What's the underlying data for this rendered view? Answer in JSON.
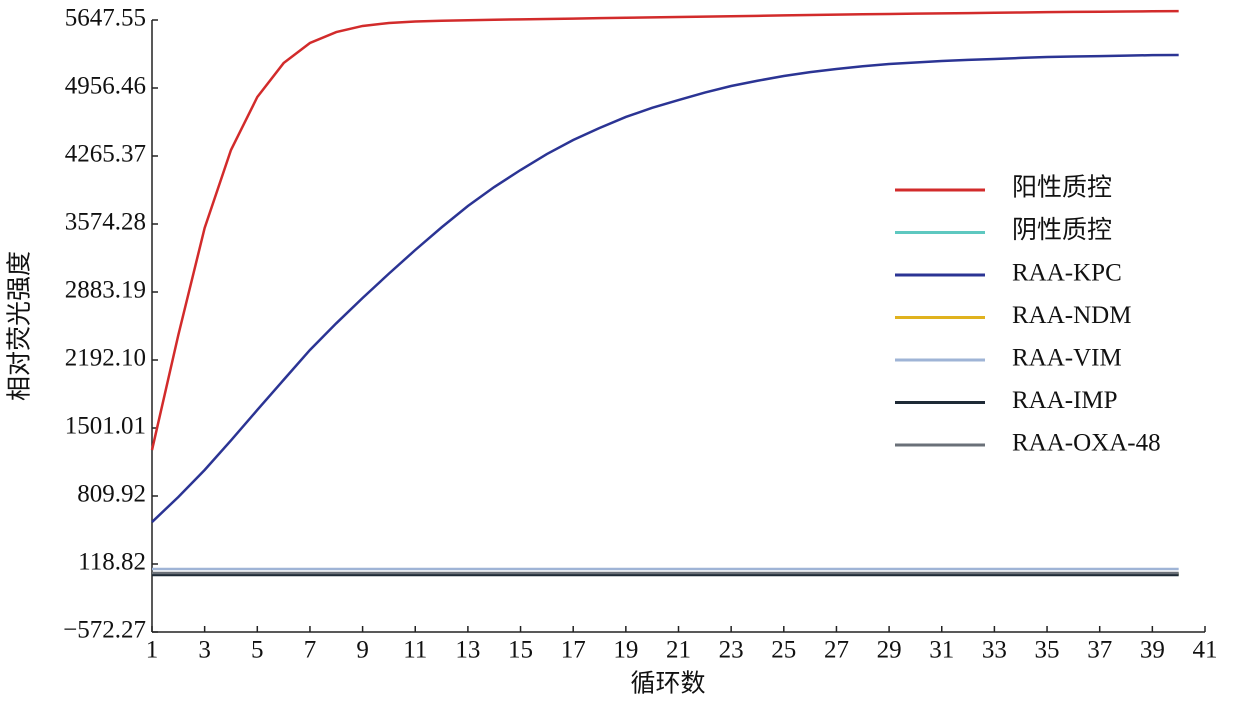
{
  "chart_data": {
    "type": "line",
    "y_label": "相对荧光强度",
    "x_label": "循环数",
    "x": [
      1,
      2,
      3,
      4,
      5,
      6,
      7,
      8,
      9,
      10,
      11,
      12,
      13,
      14,
      15,
      16,
      17,
      18,
      19,
      20,
      21,
      22,
      23,
      24,
      25,
      26,
      27,
      28,
      29,
      30,
      31,
      32,
      33,
      34,
      35,
      36,
      37,
      38,
      39,
      40
    ],
    "xlim": [
      1,
      41
    ],
    "xticks": [
      1,
      3,
      5,
      7,
      9,
      11,
      13,
      15,
      17,
      19,
      21,
      23,
      25,
      27,
      29,
      31,
      33,
      35,
      37,
      39,
      41
    ],
    "ylim": [
      -572.27,
      5647.55
    ],
    "yticks": [
      {
        "value": -572.27,
        "label": "−572.27"
      },
      118.82,
      809.92,
      1501.01,
      {
        "value": 2192.1,
        "label": "2192.10"
      },
      2883.19,
      3574.28,
      4265.37,
      4956.46,
      5647.55
    ],
    "legend": "right",
    "series": [
      {
        "name": "阳性质控",
        "color": "#d22b2b",
        "values": [
          1277,
          2446,
          3534,
          4326,
          4865,
          5210,
          5414,
          5525,
          5587,
          5617,
          5632,
          5640,
          5645,
          5650,
          5654,
          5658,
          5662,
          5666,
          5670,
          5674,
          5678,
          5682,
          5686,
          5690,
          5694,
          5698,
          5702,
          5706,
          5709,
          5712,
          5715,
          5718,
          5721,
          5724,
          5727,
          5730,
          5732,
          5734,
          5736,
          5738
        ]
      },
      {
        "name": "阴性质控",
        "color": "#5ec8c0",
        "values": [
          17,
          17,
          17,
          17,
          17,
          17,
          17,
          17,
          17,
          17,
          17,
          17,
          17,
          17,
          17,
          17,
          17,
          17,
          17,
          17,
          17,
          17,
          17,
          17,
          17,
          17,
          17,
          17,
          17,
          17,
          17,
          17,
          17,
          17,
          17,
          17,
          17,
          17,
          17,
          17
        ]
      },
      {
        "name": "RAA-KPC",
        "color": "#2b3494",
        "values": [
          545,
          800,
          1074,
          1375,
          1684,
          1990,
          2294,
          2565,
          2822,
          3070,
          3310,
          3540,
          3757,
          3950,
          4123,
          4285,
          4428,
          4550,
          4662,
          4755,
          4834,
          4910,
          4977,
          5030,
          5078,
          5118,
          5150,
          5178,
          5200,
          5216,
          5231,
          5242,
          5251,
          5262,
          5271,
          5276,
          5281,
          5286,
          5290,
          5292
        ]
      },
      {
        "name": "RAA-NDM",
        "color": "#e0b21e",
        "values": [
          17,
          17,
          17,
          17,
          17,
          17,
          17,
          17,
          17,
          17,
          17,
          17,
          17,
          17,
          17,
          17,
          17,
          17,
          17,
          17,
          17,
          17,
          17,
          17,
          17,
          17,
          17,
          17,
          17,
          17,
          17,
          17,
          17,
          17,
          17,
          17,
          17,
          17,
          17,
          17
        ]
      },
      {
        "name": "RAA-VIM",
        "color": "#9fb4d6",
        "values": [
          68,
          68,
          68,
          68,
          68,
          68,
          68,
          68,
          68,
          68,
          68,
          68,
          68,
          68,
          68,
          68,
          68,
          68,
          68,
          68,
          68,
          68,
          68,
          68,
          68,
          68,
          68,
          68,
          68,
          68,
          68,
          68,
          68,
          68,
          68,
          68,
          68,
          68,
          68,
          68
        ]
      },
      {
        "name": "RAA-IMP",
        "color": "#1e2a36",
        "values": [
          7,
          7,
          7,
          7,
          7,
          7,
          7,
          7,
          7,
          7,
          7,
          7,
          7,
          7,
          7,
          7,
          7,
          7,
          7,
          7,
          7,
          7,
          7,
          7,
          7,
          7,
          7,
          7,
          7,
          7,
          7,
          7,
          7,
          7,
          7,
          7,
          7,
          7,
          7,
          7
        ]
      },
      {
        "name": "RAA-OXA-48",
        "color": "#6a7078",
        "values": [
          27,
          27,
          27,
          27,
          27,
          27,
          27,
          27,
          27,
          27,
          27,
          27,
          27,
          27,
          27,
          27,
          27,
          27,
          27,
          27,
          27,
          27,
          27,
          27,
          27,
          27,
          27,
          27,
          27,
          27,
          27,
          27,
          27,
          27,
          27,
          27,
          27,
          27,
          27,
          27
        ]
      }
    ]
  }
}
